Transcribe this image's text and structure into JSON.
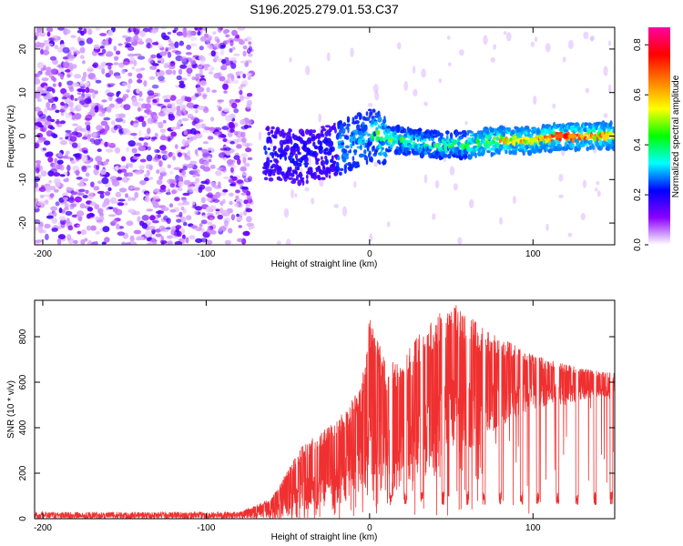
{
  "chart_data": [
    {
      "type": "heatmap",
      "title": "S196.2025.279.01.53.C37",
      "xlabel": "Height of straight line (km)",
      "ylabel": "Frequency (Hz)",
      "xlim": [
        -205,
        150
      ],
      "ylim": [
        -25,
        25
      ],
      "x_ticks": [
        -200,
        -100,
        0,
        100
      ],
      "x_tick_labels": [
        "-200",
        "-100",
        "0",
        "100"
      ],
      "y_ticks": [
        -20,
        -10,
        0,
        10,
        20
      ],
      "y_tick_labels": [
        "-20",
        "-10",
        "0",
        "10",
        "20"
      ],
      "grid": false,
      "colorbar": {
        "label": "Normalized spectral amplitude",
        "range": [
          0.0,
          0.87
        ],
        "ticks": [
          0.0,
          0.2,
          0.4,
          0.6,
          0.8
        ],
        "tick_labels": [
          "0.0",
          "0.2",
          "0.4",
          "0.6",
          "0.8"
        ],
        "colors": [
          "#ffffff",
          "#8a00ff",
          "#0000ff",
          "#00ffff",
          "#00ff00",
          "#ffff00",
          "#ff8000",
          "#ff0000",
          "#ff00a0"
        ]
      },
      "noise_region_x": [
        -205,
        -72
      ],
      "signal_centerline": [
        [
          -60,
          -4
        ],
        [
          -40,
          -5
        ],
        [
          -20,
          -3
        ],
        [
          0,
          0
        ],
        [
          20,
          -1
        ],
        [
          40,
          -2
        ],
        [
          60,
          -2
        ],
        [
          80,
          -1
        ],
        [
          100,
          -1
        ],
        [
          120,
          0
        ],
        [
          150,
          0
        ]
      ],
      "peak_amplitude_x": 120
    },
    {
      "type": "line",
      "xlabel": "Height of straight line (km)",
      "ylabel": "SNR (10 * v/v)",
      "xlim": [
        -205,
        150
      ],
      "ylim": [
        0,
        960
      ],
      "x_ticks": [
        -200,
        -100,
        0,
        100
      ],
      "x_tick_labels": [
        "-200",
        "-100",
        "0",
        "100"
      ],
      "y_ticks": [
        0,
        200,
        400,
        600,
        800
      ],
      "y_tick_labels": [
        "0",
        "200",
        "400",
        "600",
        "800"
      ],
      "grid": false,
      "series": [
        {
          "name": "SNR",
          "color": "#f03030",
          "envelope_x": [
            -205,
            -80,
            -60,
            -40,
            -20,
            -5,
            0,
            10,
            20,
            30,
            40,
            50,
            60,
            70,
            80,
            90,
            100,
            110,
            120,
            130,
            140,
            150
          ],
          "envelope_upper": [
            30,
            30,
            90,
            340,
            430,
            580,
            900,
            680,
            700,
            810,
            880,
            960,
            900,
            840,
            800,
            760,
            720,
            700,
            680,
            660,
            650,
            640
          ],
          "envelope_lower": [
            0,
            0,
            5,
            20,
            60,
            100,
            150,
            100,
            120,
            180,
            200,
            300,
            300,
            350,
            400,
            450,
            480,
            500,
            500,
            520,
            540,
            520
          ],
          "dropout_x": [
            13,
            22,
            32,
            45,
            60,
            70,
            80,
            93,
            103,
            115,
            127,
            138,
            148
          ],
          "dropout_level": 100
        }
      ]
    }
  ]
}
